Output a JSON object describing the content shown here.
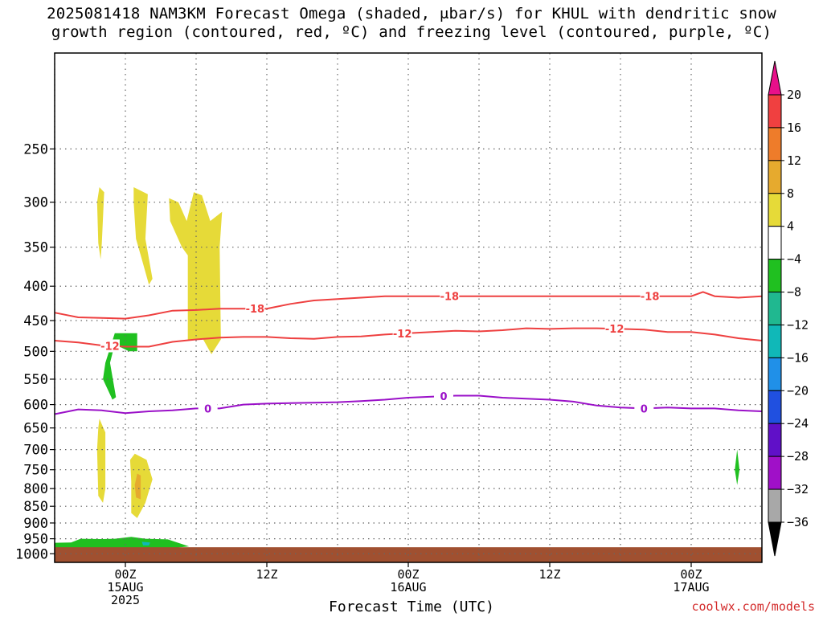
{
  "title": {
    "line1": "2025081418 NAM3KM Forecast Omega (shaded, μbar/s) for KHUL with dendritic snow",
    "line2": "growth region (contoured, red, ºC) and freezing level (contoured, purple, ºC)"
  },
  "credit": "coolwx.com/models",
  "chart_data": {
    "type": "heatmap",
    "title": "2025081418 NAM3KM Forecast Omega (shaded, μbar/s) for KHUL with dendritic snow growth region (contoured, red, ºC) and freezing level (contoured, purple, ºC)",
    "xlabel": "Forecast Time (UTC)",
    "ylabel": "",
    "x_ticks": [
      {
        "hours": 6,
        "labels": [
          "00Z",
          "15AUG",
          "2025"
        ]
      },
      {
        "hours": 18,
        "labels": [
          "12Z"
        ]
      },
      {
        "hours": 30,
        "labels": [
          "00Z",
          "16AUG"
        ]
      },
      {
        "hours": 42,
        "labels": [
          "12Z"
        ]
      },
      {
        "hours": 54,
        "labels": [
          "00Z",
          "17AUG"
        ]
      }
    ],
    "xlim_hours": [
      0,
      60
    ],
    "y_scale": "log-pressure",
    "ylim_hpa": [
      1030,
      180
    ],
    "y_ticks": [
      250,
      300,
      350,
      400,
      450,
      500,
      550,
      600,
      650,
      700,
      750,
      800,
      850,
      900,
      950,
      1000
    ],
    "grid": true,
    "colorbar": {
      "ticks": [
        "20",
        "16",
        "12",
        "8",
        "4",
        "−4",
        "−8",
        "−12",
        "−16",
        "−20",
        "−24",
        "−28",
        "−32",
        "−36"
      ],
      "colors": [
        "#e8108a",
        "#f04040",
        "#ee7c2a",
        "#e6aa2e",
        "#e6da38",
        "#ffffff",
        "#20c020",
        "#20b890",
        "#10b8b8",
        "#2090e8",
        "#2050e0",
        "#6010c8",
        "#a010c8",
        "#a8a8a8",
        "#000000"
      ]
    },
    "series": [
      {
        "name": "-18",
        "color": "#ee4040",
        "label_points": [
          [
            17.0,
            -18
          ],
          [
            33.5,
            -18
          ],
          [
            50.5,
            -18
          ]
        ],
        "x": [
          0,
          2,
          4,
          6,
          8,
          10,
          12,
          14,
          16,
          18,
          20,
          22,
          24,
          26,
          28,
          30,
          32,
          34,
          36,
          38,
          40,
          42,
          44,
          46,
          48,
          50,
          52,
          54,
          55,
          56,
          58,
          60
        ],
        "y": [
          438,
          445,
          446,
          447,
          442,
          435,
          434,
          432,
          432,
          432,
          425,
          420,
          418,
          416,
          414,
          414,
          414,
          414,
          414,
          414,
          414,
          414,
          414,
          414,
          414,
          414,
          414,
          414,
          408,
          414,
          416,
          414
        ]
      },
      {
        "name": "-12",
        "color": "#ee4040",
        "label_points": [
          [
            4.7,
            -12
          ],
          [
            29.5,
            -12
          ],
          [
            47.5,
            -12
          ]
        ],
        "x": [
          0,
          2,
          4,
          6,
          8,
          10,
          12,
          14,
          16,
          18,
          20,
          22,
          24,
          26,
          28,
          30,
          32,
          34,
          36,
          38,
          40,
          42,
          44,
          46,
          48,
          50,
          52,
          54,
          56,
          58,
          60
        ],
        "y": [
          482,
          485,
          490,
          492,
          492,
          484,
          480,
          477,
          476,
          476,
          478,
          479,
          476,
          475,
          472,
          470,
          468,
          466,
          467,
          465,
          462,
          463,
          462,
          462,
          463,
          464,
          468,
          468,
          472,
          478,
          482
        ]
      },
      {
        "name": "0",
        "color": "#9a10c8",
        "label_points": [
          [
            13.0,
            0
          ],
          [
            33.0,
            0
          ],
          [
            50.0,
            0
          ]
        ],
        "x": [
          0,
          2,
          4,
          6,
          8,
          10,
          12,
          14,
          16,
          18,
          20,
          22,
          24,
          26,
          28,
          30,
          32,
          34,
          36,
          38,
          40,
          42,
          44,
          46,
          48,
          50,
          52,
          54,
          56,
          58,
          60
        ],
        "y": [
          620,
          610,
          612,
          618,
          614,
          612,
          608,
          608,
          600,
          598,
          597,
          596,
          595,
          593,
          590,
          586,
          584,
          582,
          582,
          586,
          588,
          590,
          594,
          602,
          606,
          608,
          606,
          608,
          608,
          612,
          614
        ]
      }
    ],
    "shaded_regions": [
      {
        "color": "#e6da38",
        "points": [
          [
            3.8,
            285
          ],
          [
            4.2,
            290
          ],
          [
            4.0,
            345
          ],
          [
            3.9,
            365
          ],
          [
            3.7,
            345
          ],
          [
            3.6,
            300
          ]
        ]
      },
      {
        "color": "#e6da38",
        "points": [
          [
            6.7,
            285
          ],
          [
            7.9,
            292
          ],
          [
            7.7,
            340
          ],
          [
            8.3,
            390
          ],
          [
            8.0,
            398
          ],
          [
            7.3,
            360
          ],
          [
            6.9,
            340
          ],
          [
            6.7,
            300
          ]
        ]
      },
      {
        "color": "#e6da38",
        "points": [
          [
            9.7,
            296
          ],
          [
            10.5,
            300
          ],
          [
            11.2,
            320
          ],
          [
            11.8,
            290
          ],
          [
            12.5,
            293
          ],
          [
            13.2,
            320
          ],
          [
            14.2,
            310
          ],
          [
            14.0,
            350
          ],
          [
            14.1,
            480
          ],
          [
            13.3,
            505
          ],
          [
            12.6,
            480
          ],
          [
            11.3,
            480
          ],
          [
            11.3,
            360
          ],
          [
            10.8,
            350
          ],
          [
            9.8,
            320
          ]
        ]
      },
      {
        "color": "#e6da38",
        "points": [
          [
            3.8,
            630
          ],
          [
            4.3,
            660
          ],
          [
            4.3,
            800
          ],
          [
            4.1,
            840
          ],
          [
            3.7,
            820
          ],
          [
            3.6,
            700
          ],
          [
            3.7,
            650
          ]
        ]
      },
      {
        "color": "#e6da38",
        "points": [
          [
            6.8,
            710
          ],
          [
            7.8,
            725
          ],
          [
            8.3,
            775
          ],
          [
            7.7,
            840
          ],
          [
            7.0,
            885
          ],
          [
            6.5,
            870
          ],
          [
            6.5,
            780
          ],
          [
            6.4,
            725
          ]
        ]
      },
      {
        "color": "#e6aa2e",
        "points": [
          [
            7.0,
            760
          ],
          [
            7.3,
            765
          ],
          [
            7.3,
            830
          ],
          [
            6.9,
            825
          ],
          [
            6.8,
            790
          ]
        ]
      },
      {
        "color": "#20c020",
        "points": [
          [
            5.1,
            470
          ],
          [
            7.0,
            470
          ],
          [
            7.0,
            500
          ],
          [
            6.3,
            500
          ],
          [
            5.1,
            488
          ],
          [
            4.7,
            520
          ],
          [
            5.2,
            585
          ],
          [
            4.9,
            590
          ],
          [
            4.1,
            550
          ],
          [
            4.3,
            520
          ]
        ]
      },
      {
        "color": "#20c020",
        "points": [
          [
            0,
            963
          ],
          [
            1.4,
            962
          ],
          [
            2.2,
            950
          ],
          [
            3.9,
            951
          ],
          [
            5.1,
            950
          ],
          [
            6.5,
            944
          ],
          [
            7.7,
            950
          ],
          [
            9.6,
            952
          ],
          [
            11.4,
            975
          ],
          [
            9.0,
            985
          ],
          [
            4.0,
            985
          ],
          [
            0.8,
            983
          ],
          [
            0,
            983
          ]
        ]
      },
      {
        "color": "#10b8b8",
        "points": [
          [
            7.4,
            960
          ],
          [
            8.1,
            962
          ],
          [
            8.0,
            972
          ],
          [
            7.5,
            972
          ]
        ]
      },
      {
        "color": "#20c020",
        "points": [
          [
            15.5,
            982
          ],
          [
            17.2,
            984
          ],
          [
            15.5,
            988
          ]
        ]
      },
      {
        "color": "#20c020",
        "points": [
          [
            57.9,
            700
          ],
          [
            58.1,
            750
          ],
          [
            57.9,
            790
          ],
          [
            57.7,
            750
          ]
        ]
      }
    ],
    "terrain": {
      "color": "#a05030",
      "surface_hpa": 978
    }
  },
  "axis_title": "Forecast Time (UTC)"
}
